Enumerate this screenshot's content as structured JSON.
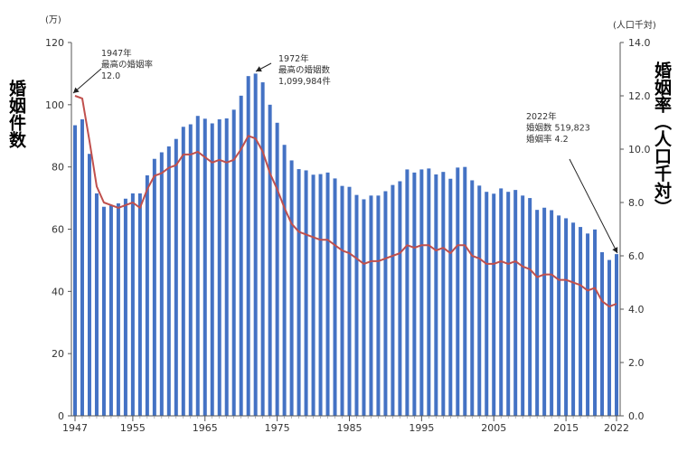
{
  "chart_data": {
    "type": "bar+line",
    "left_axis": {
      "label": "婚姻件数",
      "unit": "(万)",
      "ylim": [
        0,
        120
      ],
      "ticks": [
        0,
        20,
        40,
        60,
        80,
        100,
        120
      ]
    },
    "right_axis": {
      "label": "婚姻率（人口千対）",
      "unit": "(人口千対)",
      "ylim": [
        0.0,
        14.0
      ],
      "ticks": [
        "0.0",
        "2.0",
        "4.0",
        "6.0",
        "8.0",
        "10.0",
        "12.0",
        "14.0"
      ]
    },
    "x_tick_labels": [
      "1947",
      "1955",
      "1965",
      "1975",
      "1985",
      "1995",
      "2005",
      "2015",
      "2022"
    ],
    "years": [
      1947,
      1948,
      1949,
      1950,
      1951,
      1952,
      1953,
      1954,
      1955,
      1956,
      1957,
      1958,
      1959,
      1960,
      1961,
      1962,
      1963,
      1964,
      1965,
      1966,
      1967,
      1968,
      1969,
      1970,
      1971,
      1972,
      1973,
      1974,
      1975,
      1976,
      1977,
      1978,
      1979,
      1980,
      1981,
      1982,
      1983,
      1984,
      1985,
      1986,
      1987,
      1988,
      1989,
      1990,
      1991,
      1992,
      1993,
      1994,
      1995,
      1996,
      1997,
      1998,
      1999,
      2000,
      2001,
      2002,
      2003,
      2004,
      2005,
      2006,
      2007,
      2008,
      2009,
      2010,
      2011,
      2012,
      2013,
      2014,
      2015,
      2016,
      2017,
      2018,
      2019,
      2020,
      2021,
      2022
    ],
    "series": [
      {
        "name": "婚姻件数",
        "axis": "left",
        "color": "#4472c4",
        "values": [
          93.4,
          95.3,
          84.2,
          71.5,
          67.2,
          67.6,
          68.3,
          69.8,
          71.5,
          71.5,
          77.3,
          82.6,
          84.7,
          86.6,
          89.0,
          92.9,
          93.7,
          96.4,
          95.5,
          94.0,
          95.3,
          95.6,
          98.4,
          102.9,
          109.2,
          110.0,
          107.2,
          100.0,
          94.2,
          87.1,
          82.1,
          79.3,
          78.9,
          77.5,
          77.7,
          78.2,
          76.3,
          73.9,
          73.6,
          71.0,
          69.6,
          70.8,
          70.8,
          72.2,
          74.2,
          75.4,
          79.2,
          78.2,
          79.2,
          79.5,
          77.6,
          78.4,
          76.2,
          79.8,
          80.0,
          75.7,
          74.0,
          72.0,
          71.4,
          73.1,
          72.0,
          72.6,
          70.8,
          70.0,
          66.2,
          66.9,
          66.1,
          64.4,
          63.5,
          62.1,
          60.7,
          58.6,
          59.9,
          52.6,
          50.1,
          51.98
        ]
      },
      {
        "name": "婚姻率",
        "axis": "right",
        "color": "#c0504d",
        "values": [
          12.0,
          11.9,
          10.3,
          8.6,
          8.0,
          7.9,
          7.8,
          7.9,
          8.0,
          7.8,
          8.5,
          9.0,
          9.1,
          9.3,
          9.4,
          9.8,
          9.8,
          9.9,
          9.7,
          9.5,
          9.6,
          9.5,
          9.6,
          10.0,
          10.5,
          10.4,
          9.9,
          9.1,
          8.5,
          7.8,
          7.2,
          6.9,
          6.8,
          6.7,
          6.6,
          6.6,
          6.4,
          6.2,
          6.1,
          5.9,
          5.7,
          5.8,
          5.8,
          5.9,
          6.0,
          6.1,
          6.4,
          6.3,
          6.4,
          6.4,
          6.2,
          6.3,
          6.1,
          6.4,
          6.4,
          6.0,
          5.9,
          5.7,
          5.7,
          5.8,
          5.7,
          5.8,
          5.6,
          5.5,
          5.2,
          5.3,
          5.3,
          5.1,
          5.1,
          5.0,
          4.9,
          4.7,
          4.8,
          4.3,
          4.1,
          4.2
        ]
      }
    ],
    "annotations": [
      {
        "year": 1947,
        "axis": "right",
        "value": 12.0,
        "lines": [
          "1947年",
          "最高の婚姻率",
          "12.0"
        ]
      },
      {
        "year": 1972,
        "axis": "left",
        "value": 110.0,
        "lines": [
          "1972年",
          "最高の婚姻数",
          "1,099,984件"
        ]
      },
      {
        "year": 2022,
        "axis": "right",
        "value": 6.0,
        "lines": [
          "2022年",
          "婚姻数 519,823",
          "婚姻率 4.2"
        ]
      }
    ],
    "grid": false,
    "legend": "none"
  }
}
